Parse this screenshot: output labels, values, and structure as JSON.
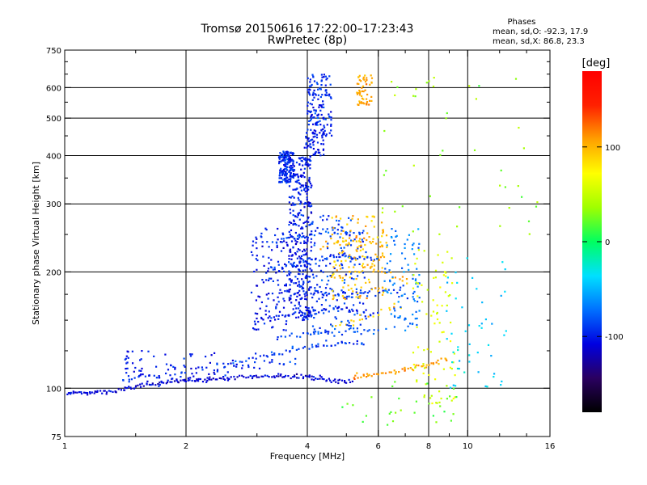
{
  "chart_data": {
    "type": "scatter",
    "title": "Tromsø 20150616 17:22:00–17:23:43",
    "subtitle": "RwPretec (8p)",
    "xlabel": "Frequency [MHz]",
    "ylabel": "Stationary phase Virtual Height [km]",
    "x_scale": "log",
    "y_scale": "log",
    "xlim": [
      1,
      16
    ],
    "ylim": [
      75,
      750
    ],
    "x_ticks": [
      1,
      2,
      4,
      6,
      8,
      10,
      16
    ],
    "x_tick_labels": [
      "1",
      "2",
      "4",
      "6",
      "8",
      "10",
      "16"
    ],
    "x_minor_ticks": [
      1.5,
      3,
      5,
      7,
      9,
      12,
      14
    ],
    "y_ticks": [
      75,
      100,
      200,
      300,
      400,
      500,
      600,
      750
    ],
    "y_tick_labels": [
      "75",
      "100",
      "200",
      "300",
      "400",
      "500",
      "600",
      "750"
    ],
    "y_minor_ticks": [
      125,
      150,
      175,
      250,
      350,
      450,
      550,
      650,
      700
    ],
    "grid": true,
    "phase_box": {
      "title": "Phases",
      "line_o": "mean, sd,O:  -92.3, 17.9",
      "line_x": "mean, sd,X:  86.8, 23.3"
    },
    "colorbar": {
      "label": "[deg]",
      "range": [
        -180,
        180
      ],
      "ticks": [
        100,
        0,
        -100
      ],
      "tick_labels": [
        "100",
        "0",
        "-100"
      ],
      "colormap": [
        "#000000",
        "#2a0060",
        "#0000e0",
        "#0070ff",
        "#00e0ff",
        "#00ff60",
        "#9fff00",
        "#ffff00",
        "#ffa000",
        "#ff2000",
        "#ff0000"
      ]
    },
    "traces": [
      {
        "kind": "line",
        "x": [
          1.0,
          1.3,
          1.6,
          2.0,
          2.5,
          3.0,
          3.5,
          4.0,
          4.6,
          5.2
        ],
        "y": [
          97,
          98,
          102,
          105,
          106,
          107,
          108,
          107,
          105,
          104
        ],
        "phase": -110,
        "spread": 0.018,
        "step": 0.012
      },
      {
        "kind": "line",
        "x": [
          1.4,
          2.0,
          2.6,
          3.2,
          3.8
        ],
        "y": [
          106,
          110,
          114,
          116,
          118
        ],
        "phase": -95,
        "spread": 0.03,
        "step": 0.03
      },
      {
        "kind": "line",
        "x": [
          5.2,
          6.0,
          7.0,
          8.0,
          9.0
        ],
        "y": [
          107,
          109,
          112,
          115,
          120
        ],
        "phase": 110,
        "spread": 0.02,
        "step": 0.015
      },
      {
        "kind": "line",
        "x": [
          2.6,
          3.2,
          3.8,
          4.4,
          5.0,
          5.6
        ],
        "y": [
          117,
          122,
          127,
          130,
          131,
          130
        ],
        "phase": -90,
        "spread": 0.025,
        "step": 0.02
      },
      {
        "kind": "line",
        "x": [
          3.4,
          4.0,
          4.6,
          5.2,
          6.0
        ],
        "y": [
          136,
          138,
          139,
          140,
          141
        ],
        "phase": -85,
        "spread": 0.03,
        "step": 0.02
      },
      {
        "kind": "line",
        "x": [
          3.0,
          3.6,
          4.2,
          4.8,
          5.4,
          6.0
        ],
        "y": [
          150,
          155,
          158,
          160,
          158,
          156
        ],
        "phase": -100,
        "spread": 0.025,
        "step": 0.02
      },
      {
        "kind": "line",
        "x": [
          3.5,
          4.0,
          4.6,
          5.2,
          5.8,
          6.4,
          7.0
        ],
        "y": [
          178,
          178,
          176,
          175,
          177,
          180,
          182
        ],
        "phase": -95,
        "spread": 0.03,
        "step": 0.02
      },
      {
        "kind": "line",
        "x": [
          3.2,
          3.7,
          4.2,
          4.8,
          5.4,
          6.0
        ],
        "y": [
          205,
          210,
          215,
          220,
          218,
          215
        ],
        "phase": -90,
        "spread": 0.03,
        "step": 0.02
      },
      {
        "kind": "line",
        "x": [
          3.3,
          3.8,
          4.4,
          5.0,
          5.6
        ],
        "y": [
          240,
          245,
          252,
          255,
          250
        ],
        "phase": -85,
        "spread": 0.035,
        "step": 0.025
      },
      {
        "kind": "line",
        "x": [
          4.3,
          4.8,
          5.3,
          5.8,
          6.3
        ],
        "y": [
          235,
          240,
          242,
          238,
          232
        ],
        "phase": 105,
        "spread": 0.035,
        "step": 0.02
      },
      {
        "kind": "line",
        "x": [
          4.6,
          5.1,
          5.6,
          6.1,
          6.6,
          7.2
        ],
        "y": [
          195,
          200,
          205,
          200,
          195,
          190
        ],
        "phase": 100,
        "spread": 0.035,
        "step": 0.025
      },
      {
        "kind": "line",
        "x": [
          4.6,
          5.2,
          5.8,
          6.4,
          7.0
        ],
        "y": [
          145,
          150,
          155,
          160,
          162
        ],
        "phase": 95,
        "spread": 0.035,
        "step": 0.03
      },
      {
        "kind": "cloud",
        "x": [
          3.4,
          3.7
        ],
        "y": [
          340,
          410
        ],
        "n": 150,
        "phase": -95
      },
      {
        "kind": "cloud",
        "x": [
          3.6,
          4.1
        ],
        "y": [
          150,
          400
        ],
        "n": 380,
        "phase": -100
      },
      {
        "kind": "cloud",
        "x": [
          2.9,
          3.6
        ],
        "y": [
          140,
          260
        ],
        "n": 120,
        "phase": -100
      },
      {
        "kind": "cloud",
        "x": [
          4.0,
          4.6
        ],
        "y": [
          450,
          650
        ],
        "n": 140,
        "phase": -95
      },
      {
        "kind": "cloud",
        "x": [
          3.9,
          4.4
        ],
        "y": [
          400,
          470
        ],
        "n": 60,
        "phase": -100
      },
      {
        "kind": "cloud",
        "x": [
          5.3,
          5.8
        ],
        "y": [
          540,
          650
        ],
        "n": 55,
        "phase": 105
      },
      {
        "kind": "cloud",
        "x": [
          4.1,
          5.6
        ],
        "y": [
          140,
          280
        ],
        "n": 160,
        "phase": -90
      },
      {
        "kind": "cloud",
        "x": [
          4.6,
          6.3
        ],
        "y": [
          170,
          280
        ],
        "n": 130,
        "phase": 95
      },
      {
        "kind": "cloud",
        "x": [
          6.2,
          7.6
        ],
        "y": [
          140,
          260
        ],
        "n": 90,
        "phase": -70
      },
      {
        "kind": "cloud",
        "x": [
          7.3,
          9.3
        ],
        "y": [
          90,
          230
        ],
        "n": 80,
        "phase": 60
      },
      {
        "kind": "cloud",
        "x": [
          8.8,
          12.5
        ],
        "y": [
          100,
          220
        ],
        "n": 50,
        "phase": -40
      },
      {
        "kind": "cloud",
        "x": [
          6.0,
          16.0
        ],
        "y": [
          250,
          700
        ],
        "n": 45,
        "phase": 30
      },
      {
        "kind": "cloud",
        "x": [
          1.4,
          2.6
        ],
        "y": [
          105,
          125
        ],
        "n": 70,
        "phase": -100
      },
      {
        "kind": "cloud",
        "x": [
          4.8,
          9.5
        ],
        "y": [
          80,
          105
        ],
        "n": 30,
        "phase": 20
      }
    ]
  }
}
